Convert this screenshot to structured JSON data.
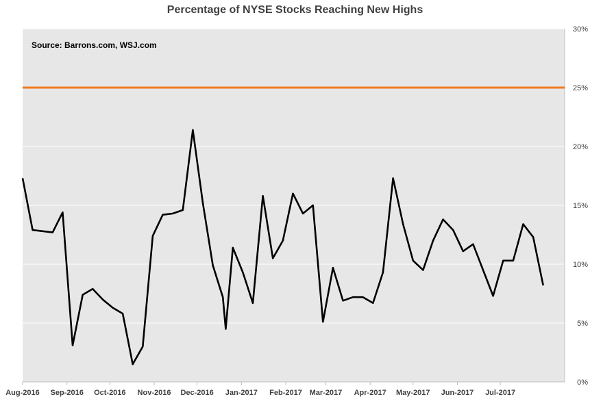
{
  "chart_data": {
    "type": "line",
    "title": "Percentage of NYSE Stocks Reaching New Highs",
    "annotation": "Source: Barrons.com, WSJ.com",
    "xlabel": "",
    "ylabel": "",
    "ylim": [
      0,
      30
    ],
    "y_tick_values": [
      0,
      5,
      10,
      15,
      20,
      25,
      30
    ],
    "y_tick_labels": [
      "0%",
      "5%",
      "10%",
      "15%",
      "20%",
      "25%",
      "30%"
    ],
    "x_tick_labels": [
      "Aug-2016",
      "Sep-2016",
      "Oct-2016",
      "Nov-2016",
      "Dec-2016",
      "Jan-2017",
      "Feb-2017",
      "Mar-2017",
      "Apr-2017",
      "May-2017",
      "Jun-2017",
      "Jul-2017"
    ],
    "x_tick_dates": [
      "2016-08-01",
      "2016-09-01",
      "2016-10-01",
      "2016-11-01",
      "2016-12-01",
      "2017-01-01",
      "2017-02-01",
      "2017-03-01",
      "2017-04-01",
      "2017-05-01",
      "2017-06-01",
      "2017-07-01"
    ],
    "x_range": [
      "2016-08-01",
      "2017-08-15"
    ],
    "grid": "horizontal",
    "plot_background": "#e7e7e7",
    "series": [
      {
        "color": "#000000",
        "points": [
          [
            "2016-08-01",
            17.3
          ],
          [
            "2016-08-08",
            12.9
          ],
          [
            "2016-08-15",
            12.8
          ],
          [
            "2016-08-22",
            12.7
          ],
          [
            "2016-08-29",
            14.4
          ],
          [
            "2016-09-05",
            3.1
          ],
          [
            "2016-09-12",
            7.4
          ],
          [
            "2016-09-19",
            7.9
          ],
          [
            "2016-09-26",
            7.0
          ],
          [
            "2016-10-03",
            6.3
          ],
          [
            "2016-10-10",
            5.8
          ],
          [
            "2016-10-17",
            1.5
          ],
          [
            "2016-10-24",
            3.0
          ],
          [
            "2016-10-31",
            12.4
          ],
          [
            "2016-11-07",
            14.2
          ],
          [
            "2016-11-14",
            14.3
          ],
          [
            "2016-11-21",
            14.6
          ],
          [
            "2016-11-28",
            21.4
          ],
          [
            "2016-12-05",
            15.2
          ],
          [
            "2016-12-12",
            9.9
          ],
          [
            "2016-12-19",
            7.2
          ],
          [
            "2016-12-21",
            4.5
          ],
          [
            "2016-12-26",
            11.4
          ],
          [
            "2017-01-02",
            9.3
          ],
          [
            "2017-01-09",
            6.7
          ],
          [
            "2017-01-16",
            15.8
          ],
          [
            "2017-01-23",
            10.5
          ],
          [
            "2017-01-30",
            12.0
          ],
          [
            "2017-02-06",
            16.0
          ],
          [
            "2017-02-13",
            14.3
          ],
          [
            "2017-02-20",
            15.0
          ],
          [
            "2017-02-27",
            5.1
          ],
          [
            "2017-03-06",
            9.7
          ],
          [
            "2017-03-13",
            6.9
          ],
          [
            "2017-03-20",
            7.2
          ],
          [
            "2017-03-27",
            7.2
          ],
          [
            "2017-04-03",
            6.7
          ],
          [
            "2017-04-10",
            9.3
          ],
          [
            "2017-04-17",
            17.3
          ],
          [
            "2017-04-24",
            13.4
          ],
          [
            "2017-05-01",
            10.3
          ],
          [
            "2017-05-08",
            9.5
          ],
          [
            "2017-05-15",
            12.0
          ],
          [
            "2017-05-22",
            13.8
          ],
          [
            "2017-05-29",
            12.9
          ],
          [
            "2017-06-05",
            11.1
          ],
          [
            "2017-06-12",
            11.7
          ],
          [
            "2017-06-19",
            9.5
          ],
          [
            "2017-06-26",
            7.3
          ],
          [
            "2017-07-03",
            10.3
          ],
          [
            "2017-07-10",
            10.3
          ],
          [
            "2017-07-17",
            13.4
          ],
          [
            "2017-07-24",
            12.3
          ],
          [
            "2017-07-31",
            8.2
          ]
        ]
      },
      {
        "color": "#f07b20",
        "points": [
          [
            "2016-08-01",
            25
          ],
          [
            "2017-08-15",
            25
          ]
        ]
      }
    ]
  }
}
